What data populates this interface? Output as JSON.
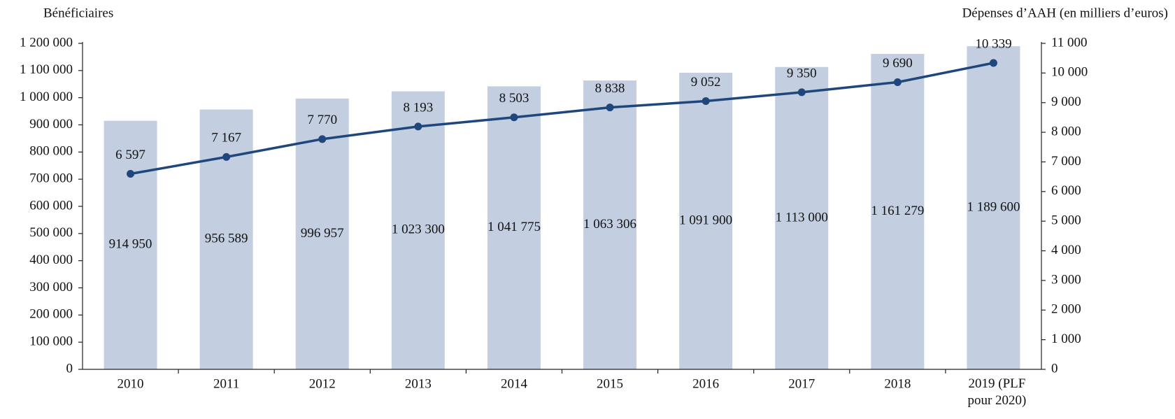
{
  "chart_data": {
    "type": "bar-line",
    "y_label": "Bénéficiaires",
    "y2_label": "Dépenses d’AAH (en milliers d’euros)",
    "categories": [
      "2010",
      "2011",
      "2012",
      "2013",
      "2014",
      "2015",
      "2016",
      "2017",
      "2018",
      "2019 (PLF pour 2020)"
    ],
    "series": [
      {
        "type": "bar",
        "color": "#c3cfe1",
        "values": [
          914950,
          956589,
          996957,
          1023300,
          1041775,
          1063306,
          1091900,
          1113000,
          1161279,
          1189600
        ],
        "value_labels": [
          "914 950",
          "956 589",
          "996 957",
          "1 023 300",
          "1 041 775",
          "1 063 306",
          "1 091 900",
          "1 113 000",
          "1 161 279",
          "1 189 600"
        ]
      },
      {
        "type": "line",
        "axis": "y2",
        "color": "#1f477d",
        "values": [
          6597,
          7167,
          7770,
          8193,
          8503,
          8838,
          9052,
          9350,
          9690,
          10339
        ],
        "value_labels": [
          "6 597",
          "7 167",
          "7 770",
          "8 193",
          "8 503",
          "8 838",
          "9 052",
          "9 350",
          "9 690",
          "10 339"
        ]
      }
    ],
    "ylim": [
      0,
      1200000
    ],
    "yticks": [
      0,
      {
        "value": 100000,
        "label": "100 000"
      },
      {
        "value": 200000,
        "label": "200 000"
      },
      {
        "value": 300000,
        "label": "300 000"
      },
      {
        "value": 400000,
        "label": "400 000"
      },
      {
        "value": 500000,
        "label": "500 000"
      },
      {
        "value": 600000,
        "label": "600 000"
      },
      {
        "value": 700000,
        "label": "700 000"
      },
      {
        "value": 800000,
        "label": "800 000"
      },
      {
        "value": 900000,
        "label": "900 000"
      },
      {
        "value": 1000000,
        "label": "1 000 000"
      },
      {
        "value": 1100000,
        "label": "1 100 000"
      },
      {
        "value": 1200000,
        "label": "1 200 000"
      }
    ],
    "y2lim": [
      0,
      11000
    ],
    "y2ticks": [
      0,
      {
        "value": 1000,
        "label": "1 000"
      },
      {
        "value": 2000,
        "label": "2 000"
      },
      {
        "value": 3000,
        "label": "3 000"
      },
      {
        "value": 4000,
        "label": "4 000"
      },
      {
        "value": 5000,
        "label": "5 000"
      },
      {
        "value": 6000,
        "label": "6 000"
      },
      {
        "value": 7000,
        "label": "7 000"
      },
      {
        "value": 8000,
        "label": "8 000"
      },
      {
        "value": 9000,
        "label": "9 000"
      },
      {
        "value": 10000,
        "label": "10 000"
      },
      {
        "value": 11000,
        "label": "11 000"
      }
    ],
    "grid": false
  }
}
